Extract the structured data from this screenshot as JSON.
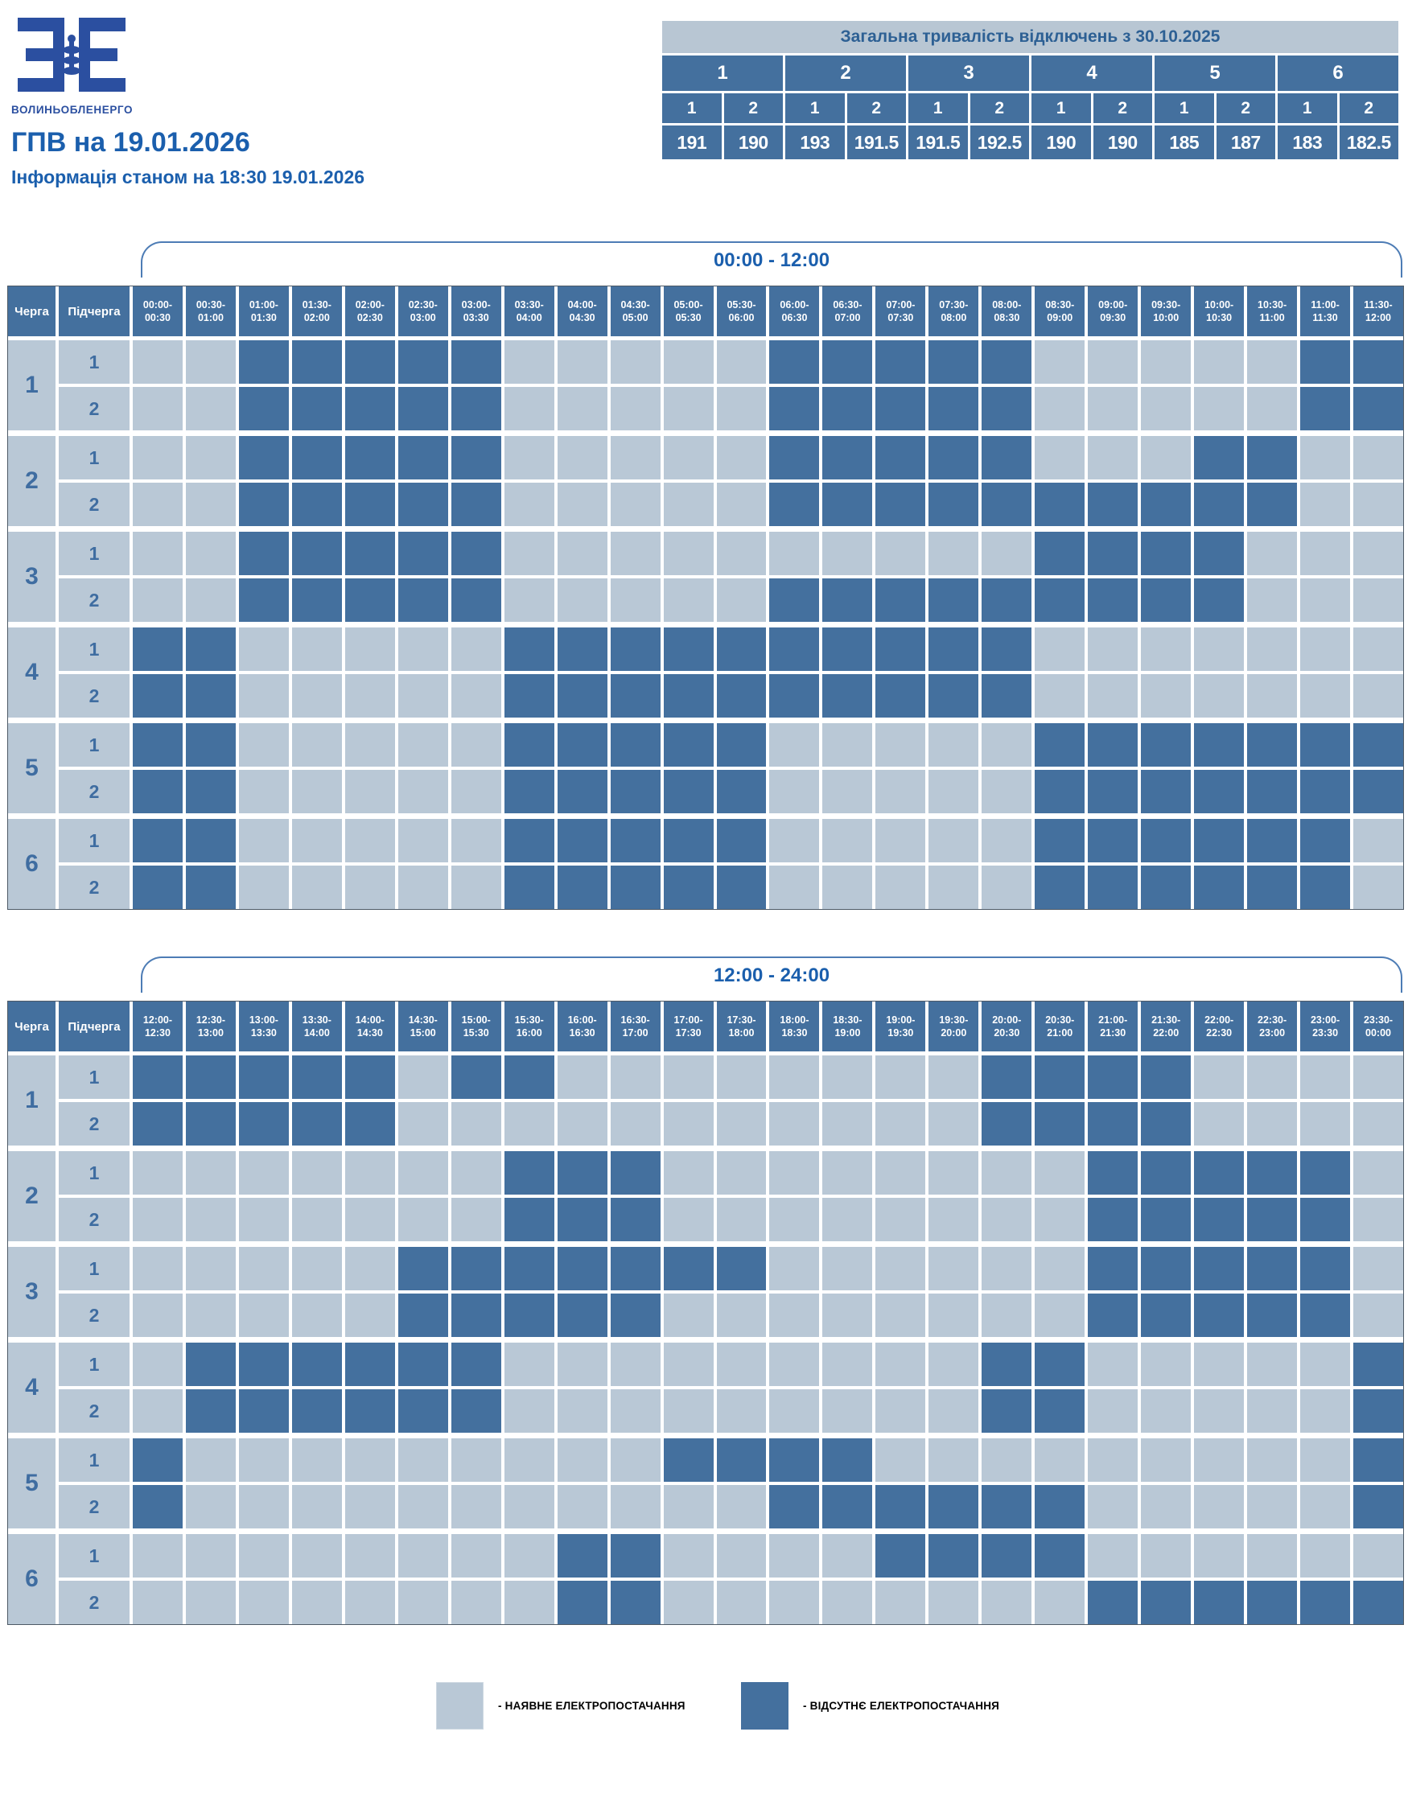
{
  "logo": {
    "text": "ЗОЕ",
    "subtext": "ВОЛИНЬОБЛЕНЕРГО"
  },
  "page": {
    "title": "ГПВ на 19.01.2026",
    "subtitle": "Інформація станом на 18:30 19.01.2026"
  },
  "summary": {
    "title": "Загальна тривалість відключень з 30.10.2025",
    "groups": [
      "1",
      "2",
      "3",
      "4",
      "5",
      "6"
    ],
    "subgroups": [
      "1",
      "2"
    ],
    "values": [
      "191",
      "190",
      "193",
      "191.5",
      "191.5",
      "192.5",
      "190",
      "190",
      "185",
      "187",
      "183",
      "182.5"
    ]
  },
  "schedule": {
    "cherha_header": "Черга",
    "pidcherha_header": "Підчерга",
    "sections": [
      {
        "label": "00:00 - 12:00",
        "slots": [
          "00:00-00:30",
          "00:30-01:00",
          "01:00-01:30",
          "01:30-02:00",
          "02:00-02:30",
          "02:30-03:00",
          "03:00-03:30",
          "03:30-04:00",
          "04:00-04:30",
          "04:30-05:00",
          "05:00-05:30",
          "05:30-06:00",
          "06:00-06:30",
          "06:30-07:00",
          "07:00-07:30",
          "07:30-08:00",
          "08:00-08:30",
          "08:30-09:00",
          "09:00-09:30",
          "09:30-10:00",
          "10:00-10:30",
          "10:30-11:00",
          "11:00-11:30",
          "11:30-12:00"
        ],
        "groups": [
          {
            "cherha": "1",
            "rows": [
              {
                "pidcherha": "1",
                "pattern": "001111100000111110000011"
              },
              {
                "pidcherha": "2",
                "pattern": "001111100000111110000011"
              }
            ]
          },
          {
            "cherha": "2",
            "rows": [
              {
                "pidcherha": "1",
                "pattern": "001111100000111110001100"
              },
              {
                "pidcherha": "2",
                "pattern": "001111100000111111111100"
              }
            ]
          },
          {
            "cherha": "3",
            "rows": [
              {
                "pidcherha": "1",
                "pattern": "001111100000000001111000"
              },
              {
                "pidcherha": "2",
                "pattern": "001111100000111111111000"
              }
            ]
          },
          {
            "cherha": "4",
            "rows": [
              {
                "pidcherha": "1",
                "pattern": "110000011111111110000000"
              },
              {
                "pidcherha": "2",
                "pattern": "110000011111111110000000"
              }
            ]
          },
          {
            "cherha": "5",
            "rows": [
              {
                "pidcherha": "1",
                "pattern": "110000011111000001111111"
              },
              {
                "pidcherha": "2",
                "pattern": "110000011111000001111111"
              }
            ]
          },
          {
            "cherha": "6",
            "rows": [
              {
                "pidcherha": "1",
                "pattern": "110000011111000001111110"
              },
              {
                "pidcherha": "2",
                "pattern": "110000011111000001111110"
              }
            ]
          }
        ]
      },
      {
        "label": "12:00 - 24:00",
        "slots": [
          "12:00-12:30",
          "12:30-13:00",
          "13:00-13:30",
          "13:30-14:00",
          "14:00-14:30",
          "14:30-15:00",
          "15:00-15:30",
          "15:30-16:00",
          "16:00-16:30",
          "16:30-17:00",
          "17:00-17:30",
          "17:30-18:00",
          "18:00-18:30",
          "18:30-19:00",
          "19:00-19:30",
          "19:30-20:00",
          "20:00-20:30",
          "20:30-21:00",
          "21:00-21:30",
          "21:30-22:00",
          "22:00-22:30",
          "22:30-23:00",
          "23:00-23:30",
          "23:30-00:00"
        ],
        "groups": [
          {
            "cherha": "1",
            "rows": [
              {
                "pidcherha": "1",
                "pattern": "111110110000000011110000"
              },
              {
                "pidcherha": "2",
                "pattern": "111110000000000011110000"
              }
            ]
          },
          {
            "cherha": "2",
            "rows": [
              {
                "pidcherha": "1",
                "pattern": "000000011100000000111110"
              },
              {
                "pidcherha": "2",
                "pattern": "000000011100000000111110"
              }
            ]
          },
          {
            "cherha": "3",
            "rows": [
              {
                "pidcherha": "1",
                "pattern": "000001111111000000111110"
              },
              {
                "pidcherha": "2",
                "pattern": "000001111100000000111110"
              }
            ]
          },
          {
            "cherha": "4",
            "rows": [
              {
                "pidcherha": "1",
                "pattern": "011111100000000011000001"
              },
              {
                "pidcherha": "2",
                "pattern": "011111100000000011000001"
              }
            ]
          },
          {
            "cherha": "5",
            "rows": [
              {
                "pidcherha": "1",
                "pattern": "100000000011110000000001"
              },
              {
                "pidcherha": "2",
                "pattern": "100000000000111111000001"
              }
            ]
          },
          {
            "cherha": "6",
            "rows": [
              {
                "pidcherha": "1",
                "pattern": "000000001100001111000000"
              },
              {
                "pidcherha": "2",
                "pattern": "000000001100000000111111"
              }
            ]
          }
        ]
      }
    ]
  },
  "legend": {
    "available": "- НАЯВНЕ ЕЛЕКТРОПОСТАЧАННЯ",
    "absent": "- ВІДСУТНЄ ЕЛЕКТРОПОСТАЧАННЯ"
  },
  "colors": {
    "power_on": "#b9c8d6",
    "power_off": "#44709e",
    "header_blue": "#44709e",
    "accent_text": "#1b5fad",
    "logo_blue": "#2b4fa0",
    "band_light": "#b8c6d3"
  }
}
